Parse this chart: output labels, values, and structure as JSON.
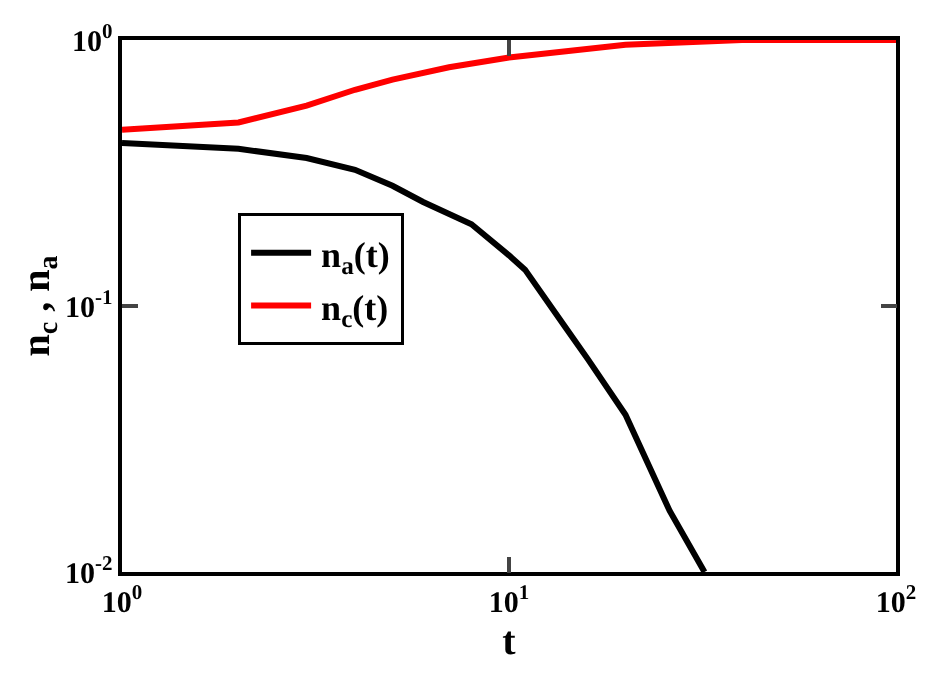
{
  "chart_data": {
    "type": "line",
    "xlabel": "t",
    "ylabel": "n$_{c}$ , n$_{a}$",
    "log": "xy",
    "legend": "left",
    "marker": "none",
    "line_style": "solid",
    "xlim": [
      1,
      100
    ],
    "ylim": [
      0.01,
      1
    ],
    "xticks": [
      {
        "value": 1,
        "label": "10$^{0}$"
      },
      {
        "value": 10,
        "label": "10$^{1}$"
      },
      {
        "value": 100,
        "label": "10$^{2}$"
      }
    ],
    "yticks": [
      {
        "value": 0.01,
        "label": "10$^{-2}$"
      },
      {
        "value": 0.1,
        "label": "10$^{-1}$"
      },
      {
        "value": 1,
        "label": "10$^{0}$"
      }
    ],
    "series": [
      {
        "name": "n$_{a}$(t)",
        "color": "#000000",
        "x": [
          1,
          2,
          3,
          4,
          5,
          6,
          8,
          10,
          11,
          14,
          16,
          20,
          26,
          32
        ],
        "values": [
          0.41,
          0.39,
          0.36,
          0.325,
          0.283,
          0.246,
          0.203,
          0.155,
          0.137,
          0.083,
          0.063,
          0.039,
          0.017,
          0.01
        ]
      },
      {
        "name": "n$_{c}$(t)",
        "color": "#ff0000",
        "x": [
          1,
          2,
          3,
          4,
          5,
          7,
          10,
          20,
          40,
          100
        ],
        "values": [
          0.46,
          0.49,
          0.567,
          0.65,
          0.71,
          0.79,
          0.86,
          0.96,
          1.0,
          1.0
        ]
      }
    ]
  }
}
